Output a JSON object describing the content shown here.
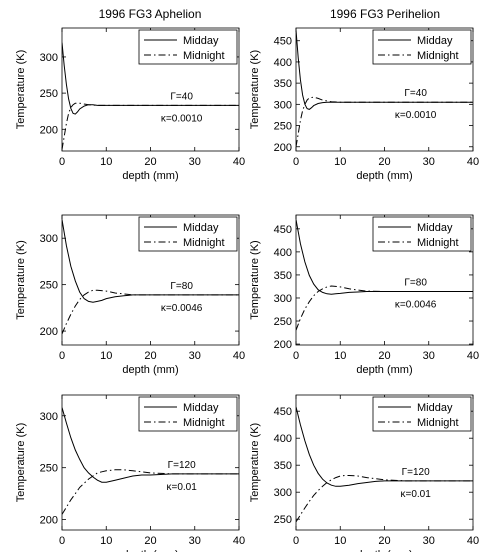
{
  "figure": {
    "column_titles": [
      "1996 FG3 Aphelion",
      "1996 FG3 Perihelion"
    ]
  },
  "chart_data": [
    {
      "type": "line",
      "title": "1996 FG3 Aphelion",
      "xlabel": "depth (mm)",
      "ylabel": "Temperature (K)",
      "xlim": [
        0,
        40
      ],
      "ylim": [
        170,
        340
      ],
      "xticks": [
        0,
        10,
        20,
        30,
        40
      ],
      "yticks": [
        200,
        250,
        300
      ],
      "grid": false,
      "legend_position": "top-right",
      "annotations": [
        "Γ=40",
        "κ=0.0010"
      ],
      "series": [
        {
          "name": "Midday",
          "style": "solid",
          "x": [
            0,
            0.5,
            1,
            1.5,
            2,
            2.5,
            3,
            3.5,
            4,
            5,
            6,
            7,
            8,
            10,
            12,
            15,
            20,
            25,
            30,
            35,
            40
          ],
          "y": [
            320,
            288,
            262,
            242,
            229,
            222,
            221,
            224,
            228,
            232,
            234,
            234,
            233,
            233,
            233,
            233,
            233,
            233,
            233,
            233,
            233
          ]
        },
        {
          "name": "Midnight",
          "style": "dashdot",
          "x": [
            0,
            0.5,
            1,
            1.5,
            2,
            2.5,
            3,
            4,
            5,
            6,
            8,
            10,
            12,
            15,
            20,
            25,
            30,
            35,
            40
          ],
          "y": [
            172,
            190,
            208,
            222,
            230,
            234,
            236,
            236,
            235,
            234,
            233,
            233,
            233,
            233,
            233,
            233,
            233,
            233,
            233
          ]
        }
      ]
    },
    {
      "type": "line",
      "title": "1996 FG3 Perihelion",
      "xlabel": "depth (mm)",
      "ylabel": "Temperature (K)",
      "xlim": [
        0,
        40
      ],
      "ylim": [
        190,
        480
      ],
      "xticks": [
        0,
        10,
        20,
        30,
        40
      ],
      "yticks": [
        200,
        250,
        300,
        350,
        400,
        450
      ],
      "grid": false,
      "legend_position": "top-right",
      "annotations": [
        "Γ=40",
        "κ=0.0010"
      ],
      "series": [
        {
          "name": "Midday",
          "style": "solid",
          "x": [
            0,
            0.5,
            1,
            1.5,
            2,
            2.5,
            3,
            3.5,
            4,
            5,
            6,
            7,
            8,
            10,
            12,
            15,
            20,
            25,
            30,
            35,
            40
          ],
          "y": [
            475,
            410,
            358,
            322,
            300,
            290,
            288,
            292,
            297,
            302,
            304,
            305,
            305,
            305,
            305,
            305,
            305,
            305,
            305,
            305,
            305
          ]
        },
        {
          "name": "Midnight",
          "style": "dashdot",
          "x": [
            0,
            0.5,
            1,
            1.5,
            2,
            2.5,
            3,
            4,
            5,
            6,
            8,
            10,
            12,
            15,
            20,
            25,
            30,
            35,
            40
          ],
          "y": [
            200,
            230,
            262,
            285,
            300,
            310,
            315,
            317,
            314,
            310,
            306,
            305,
            305,
            305,
            305,
            305,
            305,
            305,
            305
          ]
        }
      ]
    },
    {
      "type": "line",
      "title": "",
      "xlabel": "depth (mm)",
      "ylabel": "Temperature (K)",
      "xlim": [
        0,
        40
      ],
      "ylim": [
        185,
        325
      ],
      "xticks": [
        0,
        10,
        20,
        30,
        40
      ],
      "yticks": [
        200,
        250,
        300
      ],
      "grid": false,
      "legend_position": "top-right",
      "annotations": [
        "Γ=80",
        "κ=0.0046"
      ],
      "series": [
        {
          "name": "Midday",
          "style": "solid",
          "x": [
            0,
            1,
            2,
            3,
            4,
            5,
            6,
            7,
            8,
            9,
            10,
            12,
            14,
            16,
            20,
            25,
            30,
            35,
            40
          ],
          "y": [
            320,
            292,
            270,
            254,
            242,
            235,
            232,
            231,
            232,
            233,
            235,
            237,
            238,
            239,
            239,
            239,
            239,
            239,
            239
          ]
        },
        {
          "name": "Midnight",
          "style": "dashdot",
          "x": [
            0,
            1,
            2,
            3,
            4,
            5,
            6,
            7,
            8,
            10,
            12,
            14,
            16,
            20,
            25,
            30,
            35,
            40
          ],
          "y": [
            197,
            208,
            218,
            227,
            234,
            239,
            242,
            244,
            244,
            243,
            241,
            240,
            239,
            239,
            239,
            239,
            239,
            239
          ]
        }
      ]
    },
    {
      "type": "line",
      "title": "",
      "xlabel": "depth (mm)",
      "ylabel": "Temperature (K)",
      "xlim": [
        0,
        40
      ],
      "ylim": [
        198,
        480
      ],
      "xticks": [
        0,
        10,
        20,
        30,
        40
      ],
      "yticks": [
        200,
        250,
        300,
        350,
        400,
        450
      ],
      "grid": false,
      "legend_position": "top-right",
      "annotations": [
        "Γ=80",
        "κ=0.0046"
      ],
      "series": [
        {
          "name": "Midday",
          "style": "solid",
          "x": [
            0,
            1,
            2,
            3,
            4,
            5,
            6,
            7,
            8,
            9,
            10,
            12,
            14,
            16,
            20,
            25,
            30,
            35,
            40
          ],
          "y": [
            470,
            418,
            378,
            349,
            330,
            318,
            312,
            309,
            308,
            309,
            310,
            312,
            313,
            314,
            314,
            314,
            314,
            314,
            314
          ]
        },
        {
          "name": "Midnight",
          "style": "dashdot",
          "x": [
            0,
            1,
            2,
            3,
            4,
            5,
            6,
            7,
            8,
            10,
            12,
            14,
            16,
            20,
            25,
            30,
            35,
            40
          ],
          "y": [
            230,
            255,
            276,
            292,
            305,
            314,
            320,
            324,
            326,
            324,
            320,
            317,
            315,
            314,
            314,
            314,
            314,
            314
          ]
        }
      ]
    },
    {
      "type": "line",
      "title": "",
      "xlabel": "depth (mm)",
      "ylabel": "Temperature (K)",
      "xlim": [
        0,
        40
      ],
      "ylim": [
        190,
        320
      ],
      "xticks": [
        0,
        10,
        20,
        30,
        40
      ],
      "yticks": [
        200,
        250,
        300
      ],
      "grid": false,
      "legend_position": "top-right",
      "annotations": [
        "Γ=120",
        "κ=0.01"
      ],
      "series": [
        {
          "name": "Midday",
          "style": "solid",
          "x": [
            0,
            1,
            2,
            3,
            4,
            5,
            6,
            7,
            8,
            9,
            10,
            11,
            12,
            14,
            16,
            18,
            20,
            25,
            30,
            35,
            40
          ],
          "y": [
            308,
            293,
            279,
            267,
            258,
            250,
            245,
            241,
            238,
            236,
            236,
            237,
            238,
            240,
            242,
            243,
            243,
            244,
            244,
            244,
            244
          ]
        },
        {
          "name": "Midnight",
          "style": "dashdot",
          "x": [
            0,
            1,
            2,
            3,
            4,
            5,
            6,
            7,
            8,
            9,
            10,
            12,
            14,
            16,
            18,
            20,
            25,
            30,
            35,
            40
          ],
          "y": [
            205,
            212,
            219,
            225,
            231,
            235,
            239,
            242,
            245,
            246,
            247,
            248,
            248,
            247,
            246,
            245,
            244,
            244,
            244,
            244
          ]
        }
      ]
    },
    {
      "type": "line",
      "title": "",
      "xlabel": "depth (mm)",
      "ylabel": "Temperature (K)",
      "xlim": [
        0,
        40
      ],
      "ylim": [
        230,
        480
      ],
      "xticks": [
        0,
        10,
        20,
        30,
        40
      ],
      "yticks": [
        250,
        300,
        350,
        400,
        450
      ],
      "grid": false,
      "legend_position": "top-right",
      "annotations": [
        "Γ=120",
        "κ=0.01"
      ],
      "series": [
        {
          "name": "Midday",
          "style": "solid",
          "x": [
            0,
            1,
            2,
            3,
            4,
            5,
            6,
            7,
            8,
            9,
            10,
            12,
            14,
            16,
            18,
            20,
            25,
            30,
            35,
            40
          ],
          "y": [
            458,
            425,
            395,
            370,
            350,
            335,
            324,
            317,
            313,
            311,
            311,
            313,
            316,
            318,
            320,
            321,
            321,
            321,
            321,
            321
          ]
        },
        {
          "name": "Midnight",
          "style": "dashdot",
          "x": [
            0,
            1,
            2,
            3,
            4,
            5,
            6,
            7,
            8,
            9,
            10,
            11,
            12,
            14,
            16,
            18,
            20,
            25,
            30,
            35,
            40
          ],
          "y": [
            245,
            258,
            271,
            283,
            294,
            303,
            311,
            318,
            323,
            327,
            330,
            331,
            331,
            330,
            327,
            325,
            323,
            321,
            321,
            321,
            321
          ]
        }
      ]
    }
  ]
}
